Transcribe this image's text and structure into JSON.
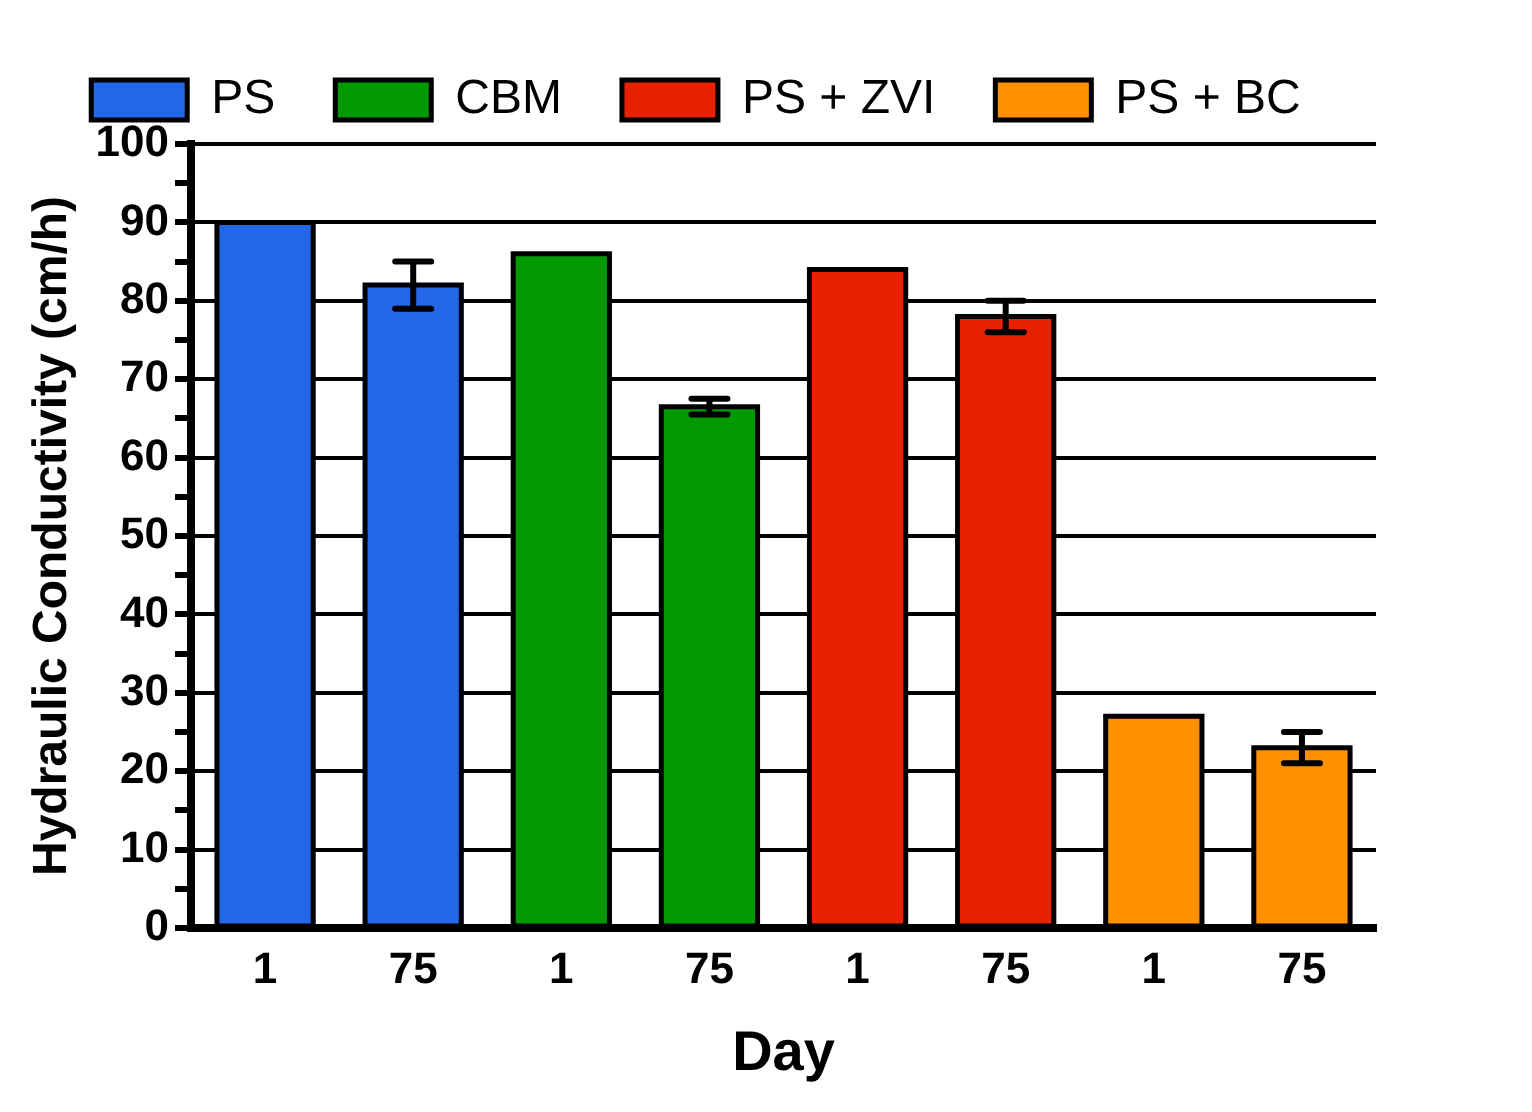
{
  "chart_data": {
    "type": "bar",
    "xlabel": "Day",
    "ylabel": "Hydraulic Conductivity (cm/h)",
    "categories": [
      "1",
      "75",
      "1",
      "75",
      "1",
      "75",
      "1",
      "75"
    ],
    "series": [
      {
        "name": "PS",
        "color": "#2366e6",
        "values": [
          90,
          82,
          null,
          null,
          null,
          null,
          null,
          null
        ],
        "errors": [
          null,
          3,
          null,
          null,
          null,
          null,
          null,
          null
        ]
      },
      {
        "name": "CBM",
        "color": "#009900",
        "values": [
          null,
          null,
          86,
          66.5,
          null,
          null,
          null,
          null
        ],
        "errors": [
          null,
          null,
          null,
          1,
          null,
          null,
          null,
          null
        ]
      },
      {
        "name": "PS + ZVI",
        "color": "#e82200",
        "values": [
          null,
          null,
          null,
          null,
          84,
          78,
          null,
          null
        ],
        "errors": [
          null,
          null,
          null,
          null,
          null,
          2,
          null,
          null
        ]
      },
      {
        "name": "PS + BC",
        "color": "#ff9100",
        "values": [
          null,
          null,
          null,
          null,
          null,
          null,
          27,
          23
        ],
        "errors": [
          null,
          null,
          null,
          null,
          null,
          null,
          null,
          2
        ]
      }
    ],
    "ylim": [
      0,
      100
    ],
    "yticks": [
      0,
      {
        "value": 5,
        "label": null
      },
      10,
      {
        "value": 15,
        "label": null
      },
      20,
      {
        "value": 25,
        "label": null
      },
      30,
      {
        "value": 35,
        "label": null
      },
      40,
      {
        "value": 45,
        "label": null
      },
      50,
      {
        "value": 55,
        "label": null
      },
      60,
      {
        "value": 65,
        "label": null
      },
      70,
      {
        "value": 75,
        "label": null
      },
      80,
      {
        "value": 85,
        "label": null
      },
      90,
      {
        "value": 95,
        "label": null
      },
      100
    ],
    "grid": "y",
    "legend": "top"
  }
}
